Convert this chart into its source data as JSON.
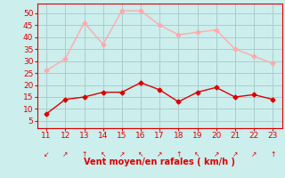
{
  "x": [
    11,
    12,
    13,
    14,
    15,
    16,
    17,
    18,
    19,
    20,
    21,
    22,
    23
  ],
  "wind_mean": [
    8,
    14,
    15,
    17,
    17,
    21,
    18,
    13,
    17,
    19,
    15,
    16,
    14
  ],
  "wind_gust": [
    26,
    31,
    46,
    37,
    51,
    51,
    45,
    41,
    42,
    43,
    35,
    32,
    29
  ],
  "mean_color": "#dd0000",
  "gust_color": "#ffaaaa",
  "bg_color": "#cceeed",
  "grid_color": "#aacccc",
  "xlabel": "Vent moyen/en rafales ( km/h )",
  "xlabel_color": "#dd0000",
  "tick_color": "#dd0000",
  "spine_color": "#dd0000",
  "ylim": [
    2,
    54
  ],
  "yticks": [
    5,
    10,
    15,
    20,
    25,
    30,
    35,
    40,
    45,
    50
  ],
  "xlim": [
    10.5,
    23.5
  ],
  "xticks": [
    11,
    12,
    13,
    14,
    15,
    16,
    17,
    18,
    19,
    20,
    21,
    22,
    23
  ],
  "marker_size": 2.5,
  "line_width": 1.0,
  "arrow_chars": [
    "↙",
    "↗",
    "↑",
    "↖",
    "↗",
    "↖",
    "↗",
    "↑",
    "↖",
    "↗",
    "↗",
    "↗",
    "↑"
  ]
}
